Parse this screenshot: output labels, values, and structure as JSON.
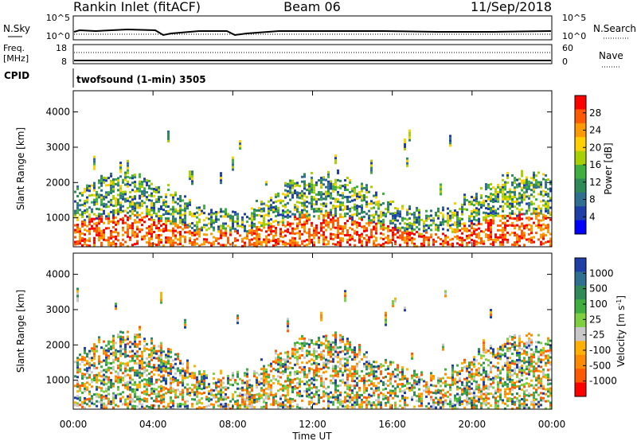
{
  "header": {
    "station": "Rankin Inlet (fitACF)",
    "beam": "Beam 06",
    "date": "11/Sep/2018"
  },
  "strip_panels": {
    "nsky": {
      "left_label": "N.Sky",
      "left_ticks": [
        "10^5",
        "10^0"
      ],
      "right_label": "N.Search",
      "right_ticks": [
        "10^5",
        "10^0"
      ]
    },
    "freq": {
      "left_label_top": "Freq.",
      "left_label_unit": "[MHz]",
      "left_ticks": [
        "18",
        "8"
      ],
      "right_label": "Nave",
      "right_ticks": [
        "60",
        "0"
      ]
    },
    "cpid": {
      "left_label": "CPID",
      "program": "twofsound (1-min) 3505"
    }
  },
  "chart_data": [
    {
      "type": "heatmap",
      "panel": "power",
      "ylabel": "Slant Range [km]",
      "ylim": [
        180,
        4600
      ],
      "y_ticks": [
        "1000",
        "2000",
        "3000",
        "4000"
      ],
      "colorbar_label": "Power [dB]",
      "colorbar_ticks": [
        "28",
        "24",
        "20",
        "16",
        "12",
        "8",
        "4"
      ],
      "colorbar_colors": [
        "#ff0000",
        "#ff5a00",
        "#ff9a00",
        "#ffd000",
        "#a8d000",
        "#3fb03f",
        "#2e8b57",
        "#2f6f8f",
        "#1f3fa8",
        "#0000ff"
      ]
    },
    {
      "type": "heatmap",
      "panel": "velocity",
      "ylabel": "Slant Range [km]",
      "ylim": [
        180,
        4600
      ],
      "y_ticks": [
        "1000",
        "2000",
        "3000",
        "4000"
      ],
      "colorbar_label": "Velocity [m s",
      "colorbar_label_sup": "-1",
      "colorbar_label_end": "]",
      "colorbar_ticks": [
        "1000",
        "500",
        "100",
        "25",
        "-25",
        "-100",
        "-500",
        "-1000"
      ],
      "colorbar_colors": [
        "#1f3fa8",
        "#2f6f8f",
        "#2e8b57",
        "#3fb03f",
        "#7fd040",
        "#c8c8c8",
        "#ffb000",
        "#ff8a00",
        "#ff5a00",
        "#ff0000"
      ]
    }
  ],
  "time_axis": {
    "label": "Time UT",
    "ticks": [
      "00:00",
      "04:00",
      "08:00",
      "12:00",
      "16:00",
      "20:00",
      "00:00"
    ]
  }
}
